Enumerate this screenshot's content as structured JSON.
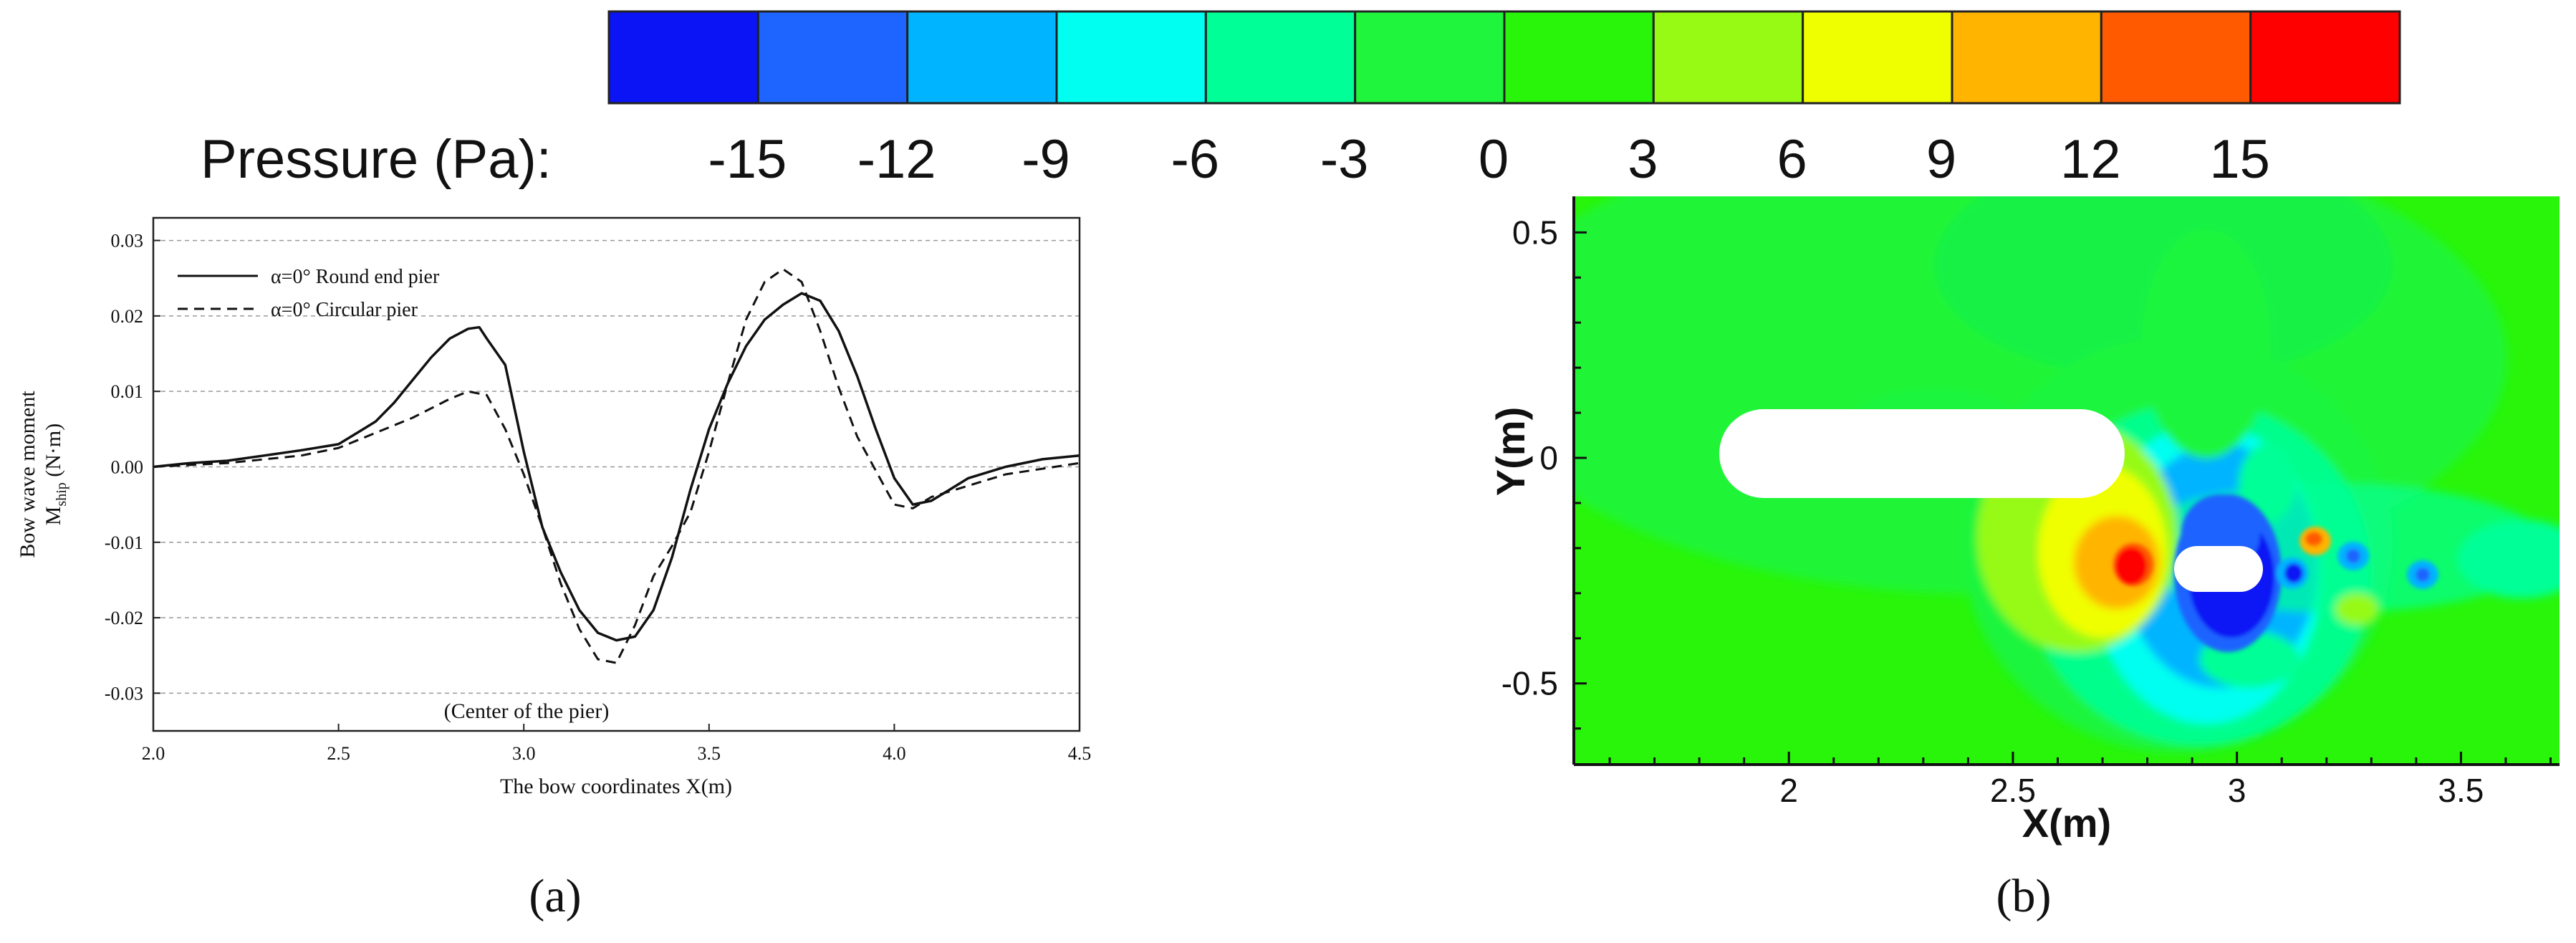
{
  "colorbar": {
    "label": "Pressure (Pa):",
    "ticks": [
      "-15",
      "-12",
      "-9",
      "-6",
      "-3",
      "0",
      "3",
      "6",
      "9",
      "12",
      "15"
    ],
    "colors": [
      "#0a14f5",
      "#1e64ff",
      "#00b4ff",
      "#00fff0",
      "#00ff96",
      "#1ef53c",
      "#28f50a",
      "#96fa14",
      "#f0ff00",
      "#ffb400",
      "#ff5a00",
      "#ff0000"
    ]
  },
  "panel_a": {
    "caption": "(a)",
    "annotation": "(Center of the pier)"
  },
  "panel_b": {
    "caption": "(b)"
  },
  "chart_data": [
    {
      "type": "line",
      "xlabel": "The bow coordinates X(m)",
      "ylabel_line1": "Bow wave moment",
      "ylabel_line2": "M",
      "ylabel_sub": "ship",
      "ylabel_unit": " (N·m)",
      "xlim": [
        2.0,
        4.5
      ],
      "ylim": [
        -0.035,
        0.033
      ],
      "xticks": [
        "2.0",
        "2.5",
        "3.0",
        "3.5",
        "4.0",
        "4.5"
      ],
      "yticks": [
        "-0.03",
        "-0.02",
        "-0.01",
        "0.00",
        "0.01",
        "0.02",
        "0.03"
      ],
      "grid": true,
      "legend_position": "top-left",
      "series": [
        {
          "name": "α=0° Round end pier",
          "style": "solid",
          "x": [
            2.0,
            2.1,
            2.2,
            2.3,
            2.4,
            2.5,
            2.55,
            2.6,
            2.65,
            2.7,
            2.75,
            2.8,
            2.85,
            2.88,
            2.9,
            2.95,
            3.0,
            3.05,
            3.1,
            3.15,
            3.2,
            3.25,
            3.3,
            3.35,
            3.4,
            3.45,
            3.5,
            3.55,
            3.6,
            3.65,
            3.7,
            3.75,
            3.8,
            3.85,
            3.9,
            3.95,
            4.0,
            4.05,
            4.1,
            4.15,
            4.2,
            4.3,
            4.4,
            4.5
          ],
          "values": [
            0.0,
            0.0005,
            0.0008,
            0.0015,
            0.0022,
            0.003,
            0.0045,
            0.006,
            0.0085,
            0.0115,
            0.0145,
            0.017,
            0.0183,
            0.0185,
            0.017,
            0.0135,
            0.002,
            -0.008,
            -0.014,
            -0.019,
            -0.022,
            -0.023,
            -0.0225,
            -0.019,
            -0.012,
            -0.003,
            0.005,
            0.011,
            0.016,
            0.0195,
            0.0215,
            0.023,
            0.022,
            0.018,
            0.012,
            0.005,
            -0.0015,
            -0.005,
            -0.0045,
            -0.003,
            -0.0015,
            0.0,
            0.001,
            0.0015
          ]
        },
        {
          "name": "α=0° Circular pier",
          "style": "dashed",
          "x": [
            2.0,
            2.2,
            2.4,
            2.5,
            2.6,
            2.7,
            2.8,
            2.85,
            2.9,
            2.95,
            3.0,
            3.05,
            3.1,
            3.15,
            3.2,
            3.25,
            3.3,
            3.35,
            3.4,
            3.45,
            3.5,
            3.55,
            3.6,
            3.65,
            3.7,
            3.75,
            3.8,
            3.85,
            3.9,
            3.95,
            4.0,
            4.05,
            4.1,
            4.2,
            4.3,
            4.5
          ],
          "values": [
            0.0,
            0.0005,
            0.0015,
            0.0025,
            0.0045,
            0.0065,
            0.009,
            0.01,
            0.0095,
            0.005,
            -0.001,
            -0.008,
            -0.0155,
            -0.0215,
            -0.0255,
            -0.026,
            -0.021,
            -0.0145,
            -0.0105,
            -0.006,
            0.002,
            0.011,
            0.0195,
            0.0245,
            0.0262,
            0.0245,
            0.018,
            0.0105,
            0.004,
            -0.0005,
            -0.005,
            -0.0055,
            -0.004,
            -0.0025,
            -0.001,
            0.0005
          ]
        }
      ]
    },
    {
      "type": "heatmap",
      "xlabel": "X(m)",
      "ylabel": "Y(m)",
      "xlim": [
        1.52,
        3.72
      ],
      "ylim": [
        -0.68,
        0.58
      ],
      "xticks": [
        "2",
        "2.5",
        "3",
        "3.5"
      ],
      "yticks": [
        "0.5",
        "0",
        "-0.5"
      ]
    }
  ]
}
